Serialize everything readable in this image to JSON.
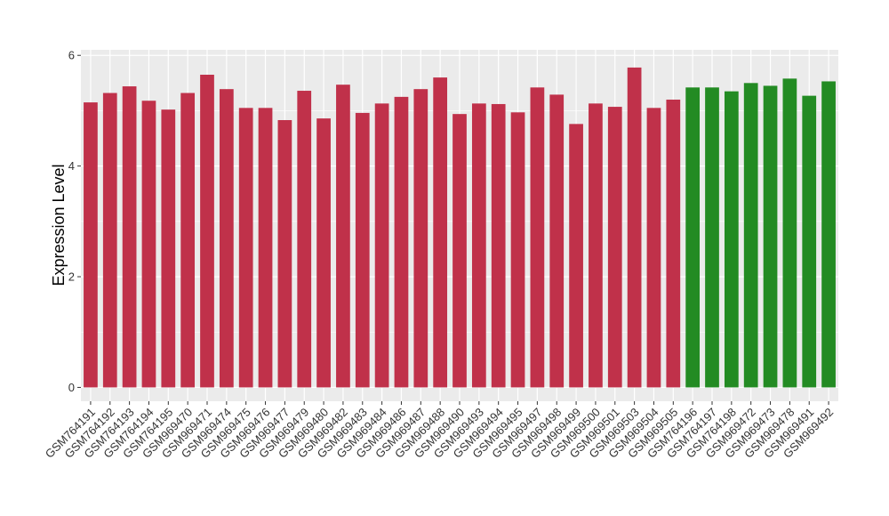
{
  "chart_data": {
    "type": "bar",
    "ylabel": "Expression Level",
    "xlabel": "",
    "ylim": [
      -0.25,
      6.1
    ],
    "yticks": [
      0,
      2,
      4,
      6
    ],
    "grid": true,
    "colors": {
      "red": "#c0314a",
      "green": "#238b23",
      "panel": "#ebebeb",
      "grid": "#ffffff"
    },
    "categories": [
      "GSM764191",
      "GSM764192",
      "GSM764193",
      "GSM764194",
      "GSM764195",
      "GSM969470",
      "GSM969471",
      "GSM969474",
      "GSM969475",
      "GSM969476",
      "GSM969477",
      "GSM969479",
      "GSM969480",
      "GSM969482",
      "GSM969483",
      "GSM969484",
      "GSM969486",
      "GSM969487",
      "GSM969488",
      "GSM969490",
      "GSM969493",
      "GSM969494",
      "GSM969495",
      "GSM969497",
      "GSM969498",
      "GSM969499",
      "GSM969500",
      "GSM969501",
      "GSM969503",
      "GSM969504",
      "GSM969505",
      "GSM764196",
      "GSM764197",
      "GSM764198",
      "GSM969472",
      "GSM969473",
      "GSM969478",
      "GSM969491",
      "GSM969492"
    ],
    "values": [
      5.15,
      5.32,
      5.44,
      5.18,
      5.02,
      5.32,
      5.65,
      5.39,
      5.05,
      5.05,
      4.83,
      5.36,
      4.86,
      5.47,
      4.96,
      5.13,
      5.25,
      5.39,
      5.6,
      4.94,
      5.13,
      5.12,
      4.97,
      5.42,
      5.29,
      4.76,
      5.13,
      5.07,
      5.78,
      5.05,
      5.2,
      5.42,
      5.42,
      5.35,
      5.5,
      5.45,
      5.58,
      5.27,
      5.53
    ],
    "bar_colors": [
      "red",
      "red",
      "red",
      "red",
      "red",
      "red",
      "red",
      "red",
      "red",
      "red",
      "red",
      "red",
      "red",
      "red",
      "red",
      "red",
      "red",
      "red",
      "red",
      "red",
      "red",
      "red",
      "red",
      "red",
      "red",
      "red",
      "red",
      "red",
      "red",
      "red",
      "red",
      "green",
      "green",
      "green",
      "green",
      "green",
      "green",
      "green",
      "green"
    ]
  }
}
